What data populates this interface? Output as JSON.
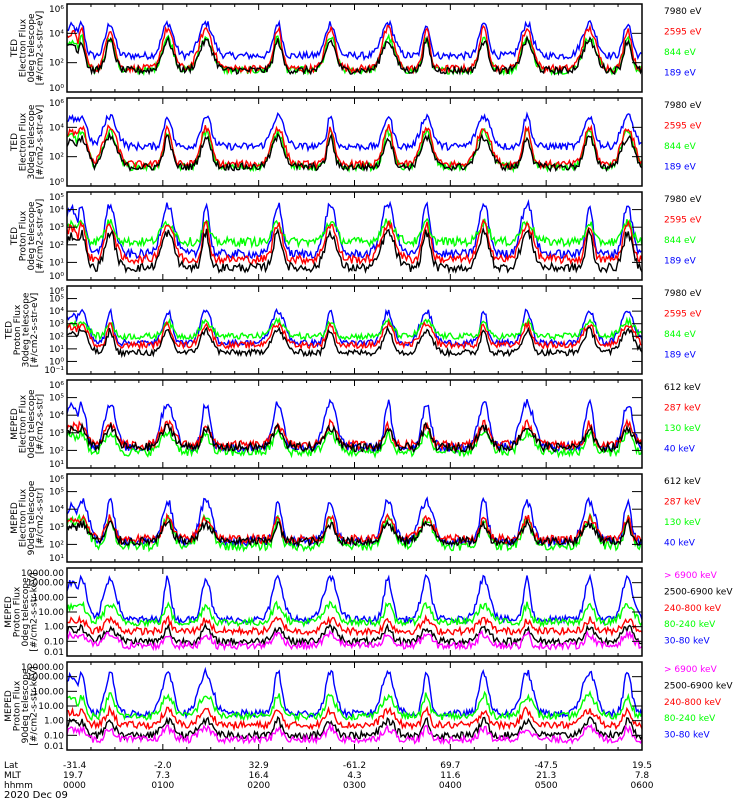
{
  "chart_data": {
    "type": "line",
    "date_label": "2020 Dec 09",
    "x_axis": {
      "row_labels": [
        "Lat",
        "MLT",
        "hhmm"
      ],
      "range_hours": [
        0,
        6
      ],
      "ticks": [
        {
          "hours": 0,
          "lat": "-31.4",
          "mlt": "19.7",
          "hhmm": "0000"
        },
        {
          "hours": 1,
          "lat": "-2.0",
          "mlt": "7.3",
          "hhmm": "0100"
        },
        {
          "hours": 2,
          "lat": "32.9",
          "mlt": "16.4",
          "hhmm": "0200"
        },
        {
          "hours": 3,
          "lat": "-61.2",
          "mlt": "4.3",
          "hhmm": "0300"
        },
        {
          "hours": 4,
          "lat": "69.7",
          "mlt": "11.6",
          "hhmm": "0400"
        },
        {
          "hours": 5,
          "lat": "-47.5",
          "mlt": "21.3",
          "hhmm": "0500"
        },
        {
          "hours": 6,
          "lat": "19.5",
          "mlt": "7.8",
          "hhmm": "0600"
        }
      ]
    },
    "burst_centers_hours": [
      0.15,
      0.45,
      1.05,
      1.45,
      2.2,
      2.75,
      3.35,
      3.75,
      4.35,
      4.8,
      5.45,
      5.85
    ],
    "panels": [
      {
        "ylabel_lines": [
          "TED",
          "Electron Flux",
          "0deg telescope",
          "[#/cm2-s-str-eV]"
        ],
        "yscale": "log",
        "ylim": [
          1,
          1000000
        ],
        "yticks": [
          {
            "v": 1,
            "label": "10⁰"
          },
          {
            "v": 100,
            "label": "10²"
          },
          {
            "v": 10000,
            "label": "10⁴"
          },
          {
            "v": 1000000,
            "label": "10⁶"
          }
        ],
        "series": [
          {
            "name": "7980 eV",
            "color": "#000000",
            "base": 30,
            "peak": 3000
          },
          {
            "name": "2595 eV",
            "color": "#ff0000",
            "base": 40,
            "peak": 20000
          },
          {
            "name": "844 eV",
            "color": "#00ff00",
            "base": 30,
            "peak": 5000
          },
          {
            "name": "189 eV",
            "color": "#0000ff",
            "base": 300,
            "peak": 50000
          }
        ]
      },
      {
        "ylabel_lines": [
          "TED",
          "Electron Flux",
          "30deg telescope",
          "[#/cm2-s-str-eV]"
        ],
        "yscale": "log",
        "ylim": [
          1,
          1000000
        ],
        "yticks": [
          {
            "v": 1,
            "label": "10⁰"
          },
          {
            "v": 100,
            "label": "10²"
          },
          {
            "v": 10000,
            "label": "10⁴"
          },
          {
            "v": 1000000,
            "label": "10⁶"
          }
        ],
        "series": [
          {
            "name": "7980 eV",
            "color": "#000000",
            "base": 20,
            "peak": 2000
          },
          {
            "name": "2595 eV",
            "color": "#ff0000",
            "base": 30,
            "peak": 10000
          },
          {
            "name": "844 eV",
            "color": "#00ff00",
            "base": 20,
            "peak": 5000
          },
          {
            "name": "189 eV",
            "color": "#0000ff",
            "base": 500,
            "peak": 60000
          }
        ]
      },
      {
        "ylabel_lines": [
          "TED",
          "Proton Flux",
          "0deg telescope",
          "[#/cm2-s-str-eV]"
        ],
        "yscale": "log",
        "ylim": [
          1,
          100000
        ],
        "yticks": [
          {
            "v": 1,
            "label": "10⁰"
          },
          {
            "v": 10,
            "label": "10¹"
          },
          {
            "v": 100,
            "label": "10²"
          },
          {
            "v": 1000,
            "label": "10³"
          },
          {
            "v": 10000,
            "label": "10⁴"
          },
          {
            "v": 100000,
            "label": "10⁵"
          }
        ],
        "series": [
          {
            "name": "7980 eV",
            "color": "#000000",
            "base": 5,
            "peak": 500
          },
          {
            "name": "2595 eV",
            "color": "#ff0000",
            "base": 15,
            "peak": 1500
          },
          {
            "name": "844 eV",
            "color": "#00ff00",
            "base": 150,
            "peak": 2000
          },
          {
            "name": "189 eV",
            "color": "#0000ff",
            "base": 30,
            "peak": 20000
          }
        ]
      },
      {
        "ylabel_lines": [
          "TED",
          "Proton Flux",
          "30deg telescope",
          "[#/cm2-s-str-eV]"
        ],
        "yscale": "log",
        "ylim": [
          0.1,
          1000000
        ],
        "yticks": [
          {
            "v": 0.1,
            "label": "10⁻¹"
          },
          {
            "v": 1,
            "label": "10⁰"
          },
          {
            "v": 10,
            "label": "10¹"
          },
          {
            "v": 100,
            "label": "10²"
          },
          {
            "v": 1000,
            "label": "10³"
          },
          {
            "v": 10000,
            "label": "10⁴"
          },
          {
            "v": 100000,
            "label": "10⁵"
          },
          {
            "v": 1000000,
            "label": "10⁶"
          }
        ],
        "series": [
          {
            "name": "7980 eV",
            "color": "#000000",
            "base": 5,
            "peak": 300
          },
          {
            "name": "2595 eV",
            "color": "#ff0000",
            "base": 20,
            "peak": 800
          },
          {
            "name": "844 eV",
            "color": "#00ff00",
            "base": 100,
            "peak": 1500
          },
          {
            "name": "189 eV",
            "color": "#0000ff",
            "base": 30,
            "peak": 10000
          }
        ]
      },
      {
        "ylabel_lines": [
          "MEPED",
          "Electron Flux",
          "0deg telescope",
          "[#/cm2-s-str]"
        ],
        "yscale": "log",
        "ylim": [
          10,
          1000000
        ],
        "yticks": [
          {
            "v": 10,
            "label": "10¹"
          },
          {
            "v": 100,
            "label": "10²"
          },
          {
            "v": 1000,
            "label": "10³"
          },
          {
            "v": 10000,
            "label": "10⁴"
          },
          {
            "v": 100000,
            "label": "10⁵"
          },
          {
            "v": 1000000,
            "label": "10⁶"
          }
        ],
        "series": [
          {
            "name": "612 keV",
            "color": "#000000",
            "base": 150,
            "peak": 2000
          },
          {
            "name": "287 keV",
            "color": "#ff0000",
            "base": 200,
            "peak": 3000
          },
          {
            "name": "130 keV",
            "color": "#00ff00",
            "base": 80,
            "peak": 1000
          },
          {
            "name": "40 keV",
            "color": "#0000ff",
            "base": 150,
            "peak": 50000
          }
        ]
      },
      {
        "ylabel_lines": [
          "MEPED",
          "Electron Flux",
          "90deg telescope",
          "[#/cm2-s-str]"
        ],
        "yscale": "log",
        "ylim": [
          10,
          1000000
        ],
        "yticks": [
          {
            "v": 10,
            "label": "10¹"
          },
          {
            "v": 100,
            "label": "10²"
          },
          {
            "v": 1000,
            "label": "10³"
          },
          {
            "v": 10000,
            "label": "10⁴"
          },
          {
            "v": 100000,
            "label": "10⁵"
          },
          {
            "v": 1000000,
            "label": "10⁶"
          }
        ],
        "series": [
          {
            "name": "612 keV",
            "color": "#000000",
            "base": 150,
            "peak": 1500
          },
          {
            "name": "287 keV",
            "color": "#ff0000",
            "base": 200,
            "peak": 3000
          },
          {
            "name": "130 keV",
            "color": "#00ff00",
            "base": 80,
            "peak": 3000
          },
          {
            "name": "40 keV",
            "color": "#0000ff",
            "base": 150,
            "peak": 30000
          }
        ]
      },
      {
        "ylabel_lines": [
          "MEPED",
          "Proton Flux",
          "0deg telescope",
          "[#/cm2-s-str-keV]"
        ],
        "yscale": "log",
        "ylim": [
          0.01,
          10000
        ],
        "yticks": [
          {
            "v": 0.01,
            "label": "0.01"
          },
          {
            "v": 0.1,
            "label": "0.10"
          },
          {
            "v": 1,
            "label": "1.00"
          },
          {
            "v": 10,
            "label": "10.00"
          },
          {
            "v": 100,
            "label": "100.00"
          },
          {
            "v": 1000,
            "label": "1000.00"
          },
          {
            "v": 10000,
            "label": "10000.00"
          }
        ],
        "series": [
          {
            "name": "> 6900 keV",
            "color": "#ff00ff",
            "base": 0.05,
            "peak": 0.3
          },
          {
            "name": "2500-6900 keV",
            "color": "#000000",
            "base": 0.1,
            "peak": 0.8
          },
          {
            "name": "240-800 keV",
            "color": "#ff0000",
            "base": 0.5,
            "peak": 3
          },
          {
            "name": "80-240 keV",
            "color": "#00ff00",
            "base": 2,
            "peak": 30
          },
          {
            "name": "30-80 keV",
            "color": "#0000ff",
            "base": 3,
            "peak": 2000
          }
        ]
      },
      {
        "ylabel_lines": [
          "MEPED",
          "Proton Flux",
          "90deg telescope",
          "[#/cm2-s-str-keV]"
        ],
        "yscale": "log",
        "ylim": [
          0.01,
          10000
        ],
        "yticks": [
          {
            "v": 0.01,
            "label": "0.01"
          },
          {
            "v": 0.1,
            "label": "0.10"
          },
          {
            "v": 1,
            "label": "1.00"
          },
          {
            "v": 10,
            "label": "10.00"
          },
          {
            "v": 100,
            "label": "100.00"
          },
          {
            "v": 1000,
            "label": "1000.00"
          },
          {
            "v": 10000,
            "label": "10000.00"
          }
        ],
        "series": [
          {
            "name": "> 6900 keV",
            "color": "#ff00ff",
            "base": 0.05,
            "peak": 0.3
          },
          {
            "name": "2500-6900 keV",
            "color": "#000000",
            "base": 0.1,
            "peak": 1
          },
          {
            "name": "240-800 keV",
            "color": "#ff0000",
            "base": 0.5,
            "peak": 5
          },
          {
            "name": "80-240 keV",
            "color": "#00ff00",
            "base": 2,
            "peak": 50
          },
          {
            "name": "30-80 keV",
            "color": "#0000ff",
            "base": 3,
            "peak": 2000
          }
        ]
      }
    ]
  }
}
